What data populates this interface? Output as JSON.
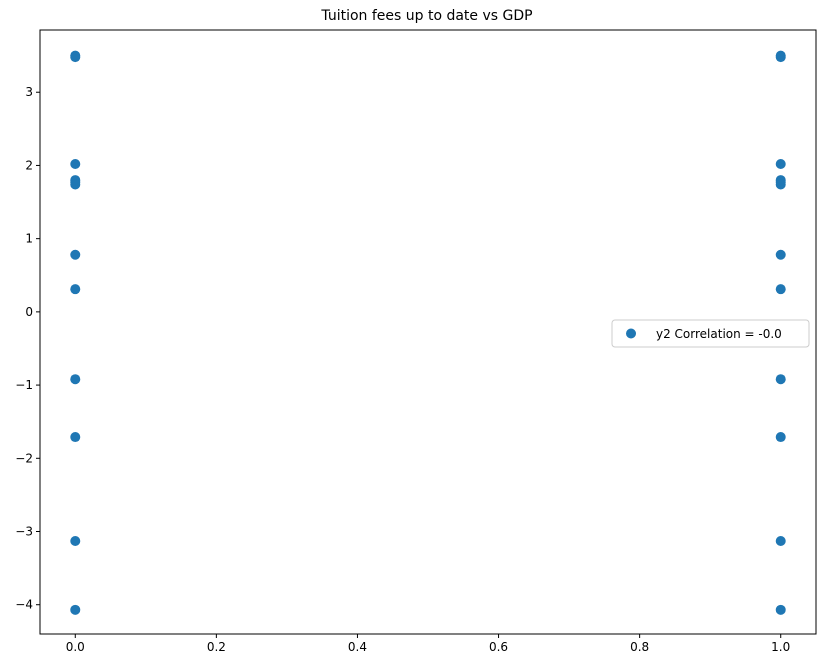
{
  "chart_data": {
    "type": "scatter",
    "title": "Tuition fees up to date vs GDP",
    "xlabel": "",
    "ylabel": "",
    "xlim": [
      -0.05,
      1.05
    ],
    "ylim": [
      -4.4,
      3.85
    ],
    "xticks": [
      0.0,
      0.2,
      0.4,
      0.6,
      0.8,
      1.0
    ],
    "xtick_labels": [
      "0.0",
      "0.2",
      "0.4",
      "0.6",
      "0.8",
      "1.0"
    ],
    "yticks": [
      -4,
      -3,
      -2,
      -1,
      0,
      1,
      2,
      3
    ],
    "ytick_labels": [
      "−4",
      "−3",
      "−2",
      "−1",
      "0",
      "1",
      "2",
      "3"
    ],
    "grid": false,
    "legend_position": "right",
    "series": [
      {
        "name": "y2 Correlation = -0.0",
        "color": "#1f77b4",
        "x": [
          0,
          0,
          0,
          0,
          0,
          0,
          0,
          0,
          0,
          0,
          0,
          0,
          1,
          1,
          1,
          1,
          1,
          1,
          1,
          1,
          1,
          1,
          1,
          1
        ],
        "y": [
          3.5,
          2.02,
          1.8,
          1.77,
          1.74,
          0.78,
          0.31,
          -0.92,
          -1.71,
          -3.13,
          -4.07,
          3.48,
          3.5,
          2.02,
          1.8,
          1.77,
          1.74,
          0.78,
          0.31,
          -0.92,
          -1.71,
          -3.13,
          -4.07,
          3.48
        ]
      }
    ]
  }
}
